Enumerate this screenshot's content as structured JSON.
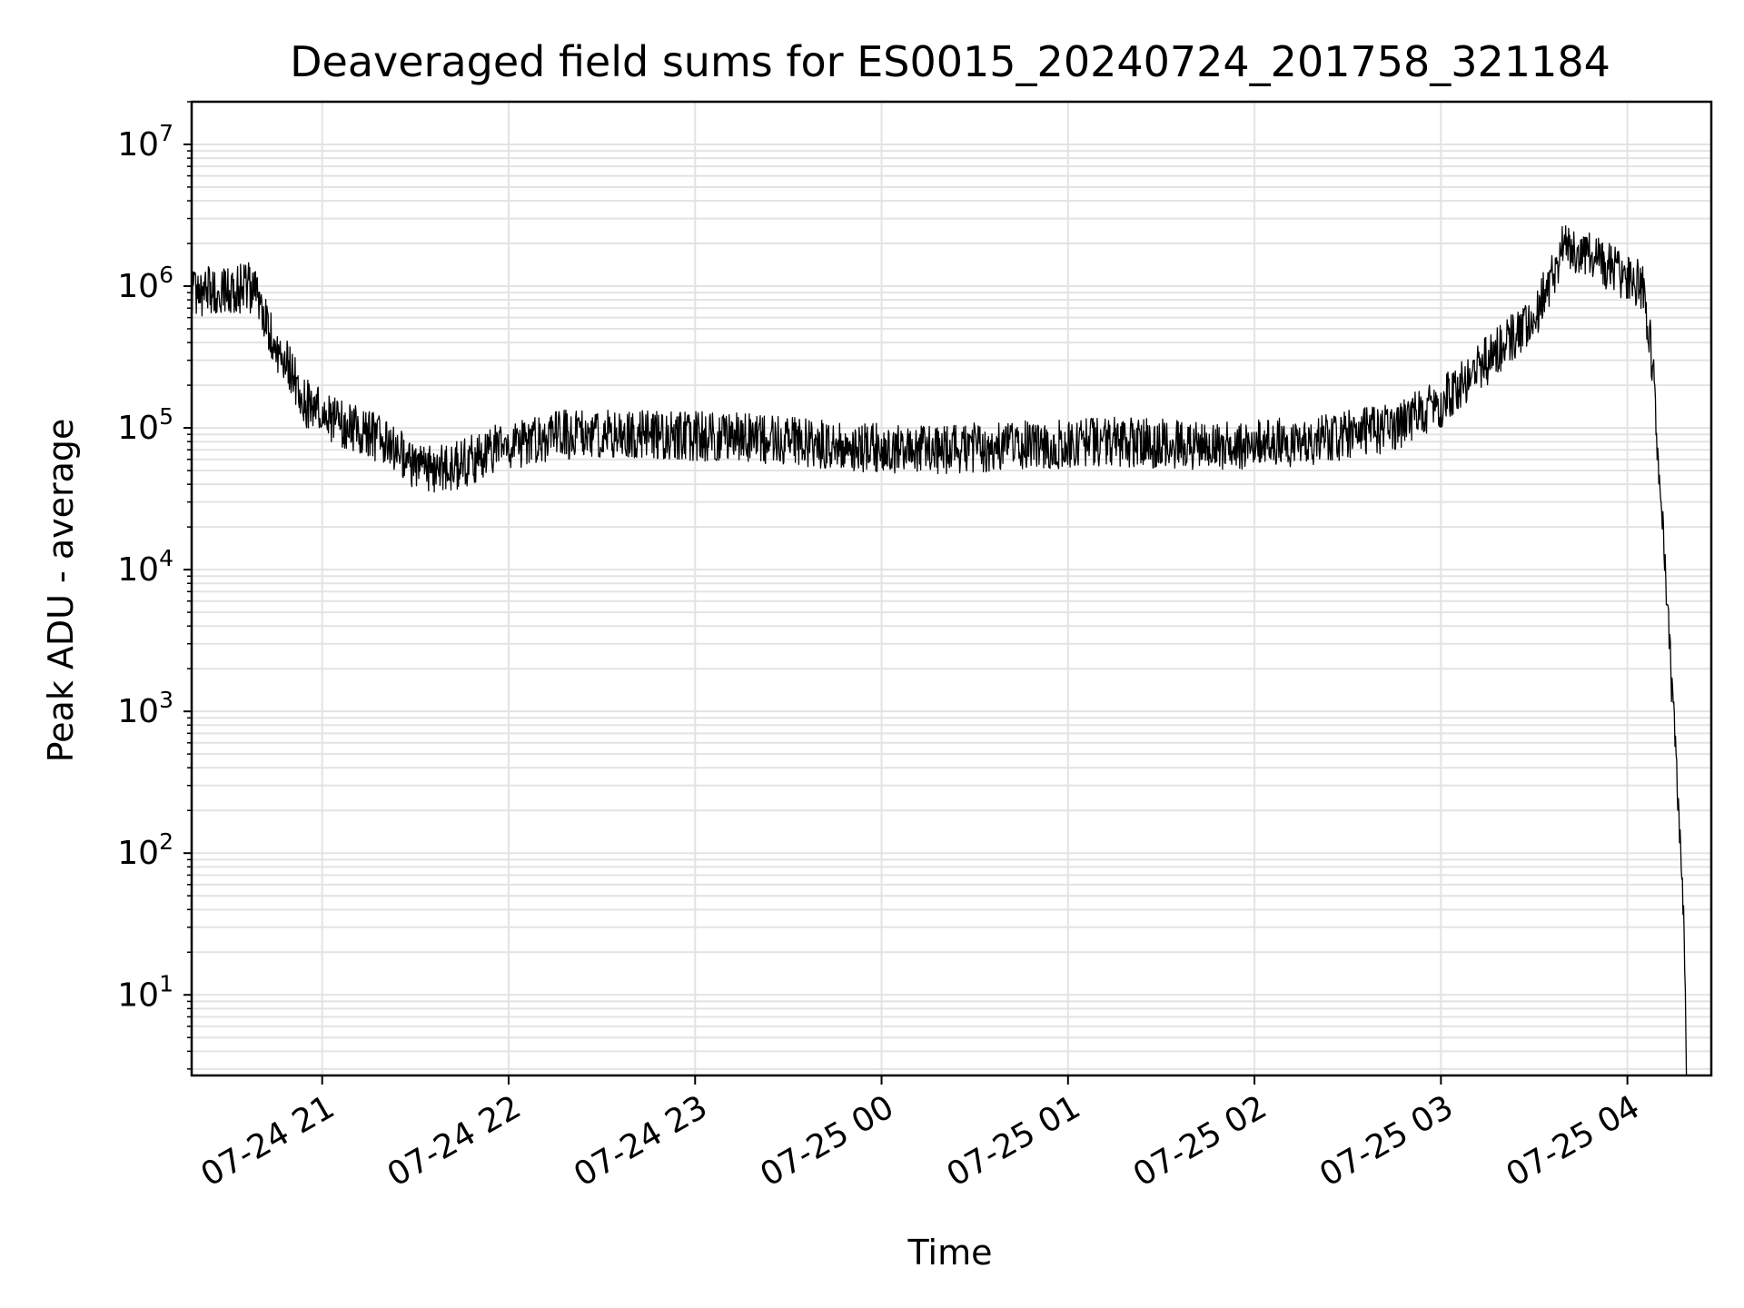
{
  "chart_data": {
    "type": "line",
    "title": "Deaveraged field sums for ES0015_20240724_201758_321184",
    "xlabel": "Time",
    "ylabel": "Peak ADU - average",
    "yscale": "log",
    "ylim": [
      2.7,
      20000000
    ],
    "xlim": [
      "2024-07-24 20:18",
      "2024-07-25 04:27"
    ],
    "grid": true,
    "line_color": "#000000",
    "grid_color": "#e3e3e3",
    "y_ticks": [
      {
        "base": "10",
        "exp": "1",
        "value": 10
      },
      {
        "base": "10",
        "exp": "2",
        "value": 100
      },
      {
        "base": "10",
        "exp": "3",
        "value": 1000
      },
      {
        "base": "10",
        "exp": "4",
        "value": 10000
      },
      {
        "base": "10",
        "exp": "5",
        "value": 100000
      },
      {
        "base": "10",
        "exp": "6",
        "value": 1000000
      },
      {
        "base": "10",
        "exp": "7",
        "value": 10000000
      }
    ],
    "x_ticks": [
      {
        "label": "07-24 21",
        "value": "2024-07-24 21:00"
      },
      {
        "label": "07-24 22",
        "value": "2024-07-24 22:00"
      },
      {
        "label": "07-24 23",
        "value": "2024-07-24 23:00"
      },
      {
        "label": "07-25 00",
        "value": "2024-07-25 00:00"
      },
      {
        "label": "07-25 01",
        "value": "2024-07-25 01:00"
      },
      {
        "label": "07-25 02",
        "value": "2024-07-25 02:00"
      },
      {
        "label": "07-25 03",
        "value": "2024-07-25 03:00"
      },
      {
        "label": "07-25 04",
        "value": "2024-07-25 04:00"
      }
    ],
    "series": [
      {
        "points": [
          [
            "2024-07-24 20:18",
            850000
          ],
          [
            "2024-07-24 20:24",
            950000
          ],
          [
            "2024-07-24 20:30",
            900000
          ],
          [
            "2024-07-24 20:36",
            1000000
          ],
          [
            "2024-07-24 20:40",
            800000
          ],
          [
            "2024-07-24 20:44",
            400000
          ],
          [
            "2024-07-24 20:50",
            250000
          ],
          [
            "2024-07-24 20:55",
            150000
          ],
          [
            "2024-07-24 21:05",
            110000
          ],
          [
            "2024-07-24 21:20",
            80000
          ],
          [
            "2024-07-24 21:30",
            55000
          ],
          [
            "2024-07-24 21:40",
            50000
          ],
          [
            "2024-07-24 21:55",
            70000
          ],
          [
            "2024-07-24 22:15",
            90000
          ],
          [
            "2024-07-24 22:45",
            90000
          ],
          [
            "2024-07-24 23:15",
            85000
          ],
          [
            "2024-07-24 23:45",
            75000
          ],
          [
            "2024-07-25 00:15",
            70000
          ],
          [
            "2024-07-25 00:45",
            75000
          ],
          [
            "2024-07-25 01:15",
            80000
          ],
          [
            "2024-07-25 01:45",
            75000
          ],
          [
            "2024-07-25 02:15",
            80000
          ],
          [
            "2024-07-25 02:45",
            100000
          ],
          [
            "2024-07-25 03:00",
            150000
          ],
          [
            "2024-07-25 03:15",
            300000
          ],
          [
            "2024-07-25 03:30",
            600000
          ],
          [
            "2024-07-25 03:40",
            2000000
          ],
          [
            "2024-07-25 03:50",
            1500000
          ],
          [
            "2024-07-25 04:05",
            1000000
          ],
          [
            "2024-07-25 04:08",
            300000
          ],
          [
            "2024-07-25 04:10",
            60000
          ],
          [
            "2024-07-25 04:13",
            5000
          ],
          [
            "2024-07-25 04:16",
            300
          ],
          [
            "2024-07-25 04:18",
            50
          ],
          [
            "2024-07-25 04:19",
            3
          ]
        ]
      }
    ]
  }
}
